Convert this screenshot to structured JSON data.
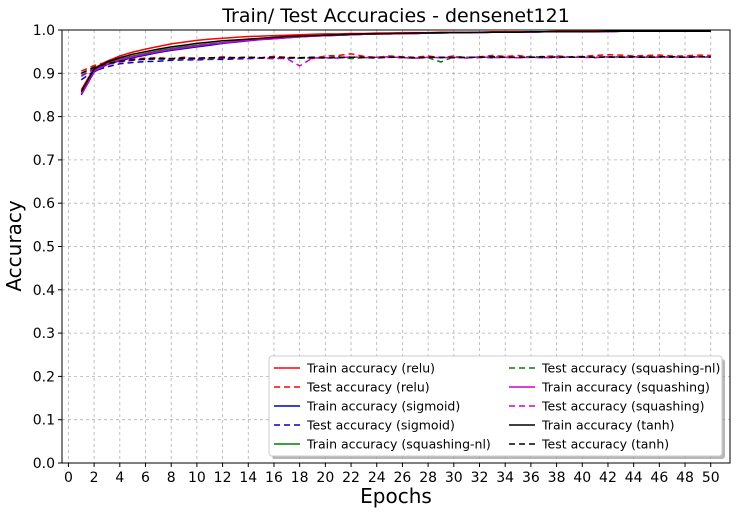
{
  "chart_data": {
    "type": "line",
    "title": "Train/ Test Accuracies - densenet121",
    "xlabel": "Epochs",
    "ylabel": "Accuracy",
    "xlim": [
      -0.5,
      51.5
    ],
    "ylim": [
      0.0,
      1.0
    ],
    "xticks": [
      0,
      2,
      4,
      6,
      8,
      10,
      12,
      14,
      16,
      18,
      20,
      22,
      24,
      26,
      28,
      30,
      32,
      34,
      36,
      38,
      40,
      42,
      44,
      46,
      48,
      50
    ],
    "yticks": [
      0.0,
      0.1,
      0.2,
      0.3,
      0.4,
      0.5,
      0.6,
      0.7,
      0.8,
      0.9,
      1.0
    ],
    "grid": true,
    "legend_position": "lower-right",
    "legend_columns": 2,
    "x": [
      1,
      2,
      3,
      4,
      5,
      6,
      7,
      8,
      9,
      10,
      11,
      12,
      13,
      14,
      15,
      16,
      17,
      18,
      19,
      20,
      21,
      22,
      23,
      24,
      25,
      26,
      27,
      28,
      29,
      30,
      31,
      32,
      33,
      34,
      35,
      36,
      37,
      38,
      39,
      40,
      41,
      42,
      43,
      44,
      45,
      46,
      47,
      48,
      49,
      50
    ],
    "series": [
      {
        "name": "Train accuracy (relu)",
        "color": "#ff0000",
        "dash": "solid",
        "values": [
          0.862,
          0.912,
          0.928,
          0.94,
          0.949,
          0.956,
          0.962,
          0.968,
          0.972,
          0.976,
          0.979,
          0.981,
          0.983,
          0.985,
          0.986,
          0.987,
          0.988,
          0.989,
          0.99,
          0.991,
          0.991,
          0.992,
          0.992,
          0.993,
          0.993,
          0.994,
          0.994,
          0.994,
          0.995,
          0.995,
          0.995,
          0.995,
          0.996,
          0.996,
          0.996,
          0.996,
          0.996,
          0.997,
          0.997,
          0.997,
          0.997,
          0.997,
          0.997,
          0.997,
          0.998,
          0.998,
          0.998,
          0.998,
          0.998,
          0.998
        ]
      },
      {
        "name": "Test accuracy (relu)",
        "color": "#ff0000",
        "dash": "dashed",
        "values": [
          0.905,
          0.918,
          0.926,
          0.93,
          0.933,
          0.935,
          0.936,
          0.934,
          0.937,
          0.932,
          0.935,
          0.938,
          0.936,
          0.937,
          0.936,
          0.939,
          0.937,
          0.936,
          0.934,
          0.94,
          0.941,
          0.945,
          0.939,
          0.937,
          0.94,
          0.938,
          0.937,
          0.94,
          0.936,
          0.94,
          0.936,
          0.938,
          0.941,
          0.939,
          0.941,
          0.937,
          0.939,
          0.94,
          0.938,
          0.939,
          0.941,
          0.943,
          0.942,
          0.94,
          0.941,
          0.942,
          0.94,
          0.94,
          0.942,
          0.941
        ]
      },
      {
        "name": "Train accuracy (sigmoid)",
        "color": "#0000cc",
        "dash": "solid",
        "values": [
          0.85,
          0.903,
          0.92,
          0.929,
          0.936,
          0.942,
          0.948,
          0.953,
          0.957,
          0.961,
          0.965,
          0.969,
          0.972,
          0.975,
          0.978,
          0.98,
          0.982,
          0.984,
          0.986,
          0.987,
          0.988,
          0.989,
          0.99,
          0.991,
          0.991,
          0.992,
          0.992,
          0.993,
          0.993,
          0.994,
          0.994,
          0.994,
          0.995,
          0.995,
          0.995,
          0.995,
          0.996,
          0.996,
          0.996,
          0.996,
          0.996,
          0.996,
          0.997,
          0.997,
          0.997,
          0.997,
          0.997,
          0.997,
          0.997,
          0.997
        ]
      },
      {
        "name": "Test accuracy (sigmoid)",
        "color": "#0000cc",
        "dash": "dashed",
        "values": [
          0.885,
          0.905,
          0.915,
          0.922,
          0.925,
          0.927,
          0.928,
          0.93,
          0.931,
          0.931,
          0.932,
          0.932,
          0.933,
          0.934,
          0.935,
          0.934,
          0.935,
          0.935,
          0.936,
          0.935,
          0.936,
          0.936,
          0.937,
          0.936,
          0.937,
          0.936,
          0.935,
          0.937,
          0.936,
          0.937,
          0.936,
          0.937,
          0.936,
          0.937,
          0.936,
          0.937,
          0.936,
          0.937,
          0.938,
          0.937,
          0.937,
          0.937,
          0.938,
          0.937,
          0.937,
          0.938,
          0.937,
          0.937,
          0.938,
          0.937
        ]
      },
      {
        "name": "Test accuracy (squashing-nl)",
        "color": "#008000",
        "dash": "dashed",
        "values": [
          0.895,
          0.912,
          0.921,
          0.927,
          0.93,
          0.932,
          0.933,
          0.932,
          0.934,
          0.935,
          0.933,
          0.936,
          0.935,
          0.937,
          0.935,
          0.936,
          0.936,
          0.935,
          0.937,
          0.935,
          0.938,
          0.934,
          0.936,
          0.935,
          0.938,
          0.937,
          0.935,
          0.936,
          0.926,
          0.938,
          0.937,
          0.936,
          0.938,
          0.937,
          0.936,
          0.939,
          0.937,
          0.936,
          0.938,
          0.937,
          0.937,
          0.938,
          0.938,
          0.937,
          0.939,
          0.937,
          0.938,
          0.937,
          0.938,
          0.938
        ]
      },
      {
        "name": "Train accuracy (squashing-nl)",
        "color": "#008000",
        "dash": "solid",
        "values": [
          0.855,
          0.907,
          0.923,
          0.933,
          0.94,
          0.946,
          0.952,
          0.957,
          0.961,
          0.965,
          0.968,
          0.971,
          0.974,
          0.977,
          0.979,
          0.981,
          0.983,
          0.985,
          0.986,
          0.987,
          0.988,
          0.989,
          0.99,
          0.991,
          0.991,
          0.992,
          0.992,
          0.993,
          0.993,
          0.994,
          0.994,
          0.994,
          0.995,
          0.995,
          0.995,
          0.995,
          0.996,
          0.996,
          0.996,
          0.996,
          0.996,
          0.996,
          0.997,
          0.997,
          0.997,
          0.997,
          0.997,
          0.997,
          0.997,
          0.997
        ]
      },
      {
        "name": "Train accuracy (squashing)",
        "color": "#cc00cc",
        "dash": "solid",
        "values": [
          0.852,
          0.905,
          0.921,
          0.931,
          0.938,
          0.944,
          0.95,
          0.955,
          0.959,
          0.963,
          0.967,
          0.97,
          0.973,
          0.976,
          0.978,
          0.98,
          0.982,
          0.984,
          0.986,
          0.987,
          0.988,
          0.989,
          0.99,
          0.991,
          0.991,
          0.992,
          0.992,
          0.993,
          0.993,
          0.994,
          0.994,
          0.994,
          0.995,
          0.995,
          0.995,
          0.995,
          0.996,
          0.996,
          0.996,
          0.996,
          0.996,
          0.996,
          0.997,
          0.997,
          0.997,
          0.997,
          0.997,
          0.997,
          0.997,
          0.997
        ]
      },
      {
        "name": "Test accuracy (squashing)",
        "color": "#cc00cc",
        "dash": "dashed",
        "values": [
          0.893,
          0.91,
          0.92,
          0.926,
          0.93,
          0.933,
          0.934,
          0.933,
          0.935,
          0.934,
          0.935,
          0.936,
          0.935,
          0.936,
          0.935,
          0.935,
          0.934,
          0.917,
          0.935,
          0.936,
          0.935,
          0.938,
          0.936,
          0.937,
          0.938,
          0.936,
          0.935,
          0.937,
          0.936,
          0.937,
          0.935,
          0.938,
          0.936,
          0.937,
          0.936,
          0.937,
          0.936,
          0.938,
          0.937,
          0.937,
          0.936,
          0.938,
          0.937,
          0.938,
          0.937,
          0.937,
          0.938,
          0.937,
          0.938,
          0.937
        ]
      },
      {
        "name": "Train accuracy (tanh)",
        "color": "#000000",
        "dash": "solid",
        "values": [
          0.858,
          0.91,
          0.926,
          0.936,
          0.944,
          0.95,
          0.956,
          0.961,
          0.965,
          0.969,
          0.972,
          0.975,
          0.977,
          0.979,
          0.981,
          0.983,
          0.985,
          0.986,
          0.987,
          0.988,
          0.989,
          0.99,
          0.991,
          0.991,
          0.992,
          0.992,
          0.993,
          0.993,
          0.994,
          0.994,
          0.994,
          0.995,
          0.995,
          0.995,
          0.995,
          0.996,
          0.996,
          0.996,
          0.996,
          0.996,
          0.996,
          0.997,
          0.997,
          0.997,
          0.997,
          0.997,
          0.997,
          0.997,
          0.997,
          0.997
        ]
      },
      {
        "name": "Test accuracy (tanh)",
        "color": "#000000",
        "dash": "dashed",
        "values": [
          0.9,
          0.914,
          0.922,
          0.928,
          0.931,
          0.933,
          0.934,
          0.934,
          0.935,
          0.935,
          0.936,
          0.936,
          0.936,
          0.937,
          0.936,
          0.937,
          0.936,
          0.936,
          0.937,
          0.936,
          0.937,
          0.937,
          0.937,
          0.936,
          0.937,
          0.937,
          0.936,
          0.937,
          0.937,
          0.936,
          0.937,
          0.937,
          0.938,
          0.937,
          0.937,
          0.937,
          0.938,
          0.937,
          0.937,
          0.938,
          0.937,
          0.938,
          0.937,
          0.938,
          0.937,
          0.938,
          0.938,
          0.937,
          0.938,
          0.938
        ]
      }
    ],
    "legend_order": [
      "Train accuracy (relu)",
      "Test accuracy (relu)",
      "Train accuracy (sigmoid)",
      "Test accuracy (sigmoid)",
      "Train accuracy (squashing-nl)",
      "Test accuracy (squashing-nl)",
      "Train accuracy (squashing)",
      "Test accuracy (squashing)",
      "Train accuracy (tanh)",
      "Test accuracy (tanh)"
    ]
  }
}
